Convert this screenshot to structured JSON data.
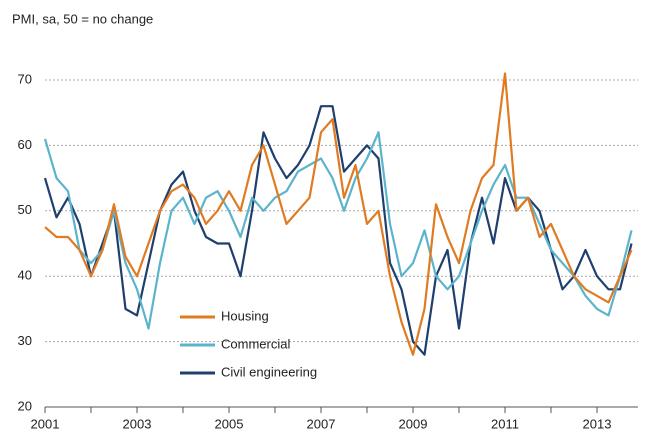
{
  "chart_data": {
    "type": "line",
    "subtitle": "PMI, sa, 50 = no change",
    "x": [
      2001,
      2001.25,
      2001.5,
      2001.75,
      2002,
      2002.25,
      2002.5,
      2002.75,
      2003,
      2003.25,
      2003.5,
      2003.75,
      2004,
      2004.25,
      2004.5,
      2004.75,
      2005,
      2005.25,
      2005.5,
      2005.75,
      2006,
      2006.25,
      2006.5,
      2006.75,
      2007,
      2007.25,
      2007.5,
      2007.75,
      2008,
      2008.25,
      2008.5,
      2008.75,
      2009,
      2009.25,
      2009.5,
      2009.75,
      2010,
      2010.25,
      2010.5,
      2010.75,
      2011,
      2011.25,
      2011.5,
      2011.75,
      2012,
      2012.25,
      2012.5,
      2012.75,
      2013,
      2013.25,
      2013.5,
      2013.75
    ],
    "series": [
      {
        "name": "Housing",
        "color": "#e07b22",
        "values": [
          47.5,
          46,
          46,
          44,
          40,
          44,
          51,
          43,
          40,
          45,
          50,
          53,
          54,
          52,
          48,
          50,
          53,
          50,
          57,
          60,
          54,
          48,
          50,
          52,
          62,
          64,
          52,
          57,
          48,
          50,
          40,
          33,
          28,
          35,
          51,
          46,
          42,
          50,
          55,
          57,
          71,
          50,
          52,
          46,
          48,
          44,
          40,
          38,
          37,
          36,
          40,
          44
        ]
      },
      {
        "name": "Commercial",
        "color": "#5bb4cc",
        "values": [
          61,
          55,
          53,
          44,
          42,
          44,
          50,
          42,
          38,
          32,
          42,
          50,
          52,
          48,
          52,
          53,
          50,
          46,
          52,
          50,
          52,
          53,
          56,
          57,
          58,
          55,
          50,
          55,
          58,
          62,
          48,
          40,
          42,
          47,
          40,
          38,
          40,
          45,
          50,
          54,
          57,
          52,
          52,
          48,
          44,
          42,
          40,
          37,
          35,
          34,
          40,
          47
        ]
      },
      {
        "name": "Civil engineering",
        "color": "#1f3f6e",
        "values": [
          55,
          49,
          52,
          48,
          40,
          45,
          50,
          35,
          34,
          42,
          50,
          54,
          56,
          50,
          46,
          45,
          45,
          40,
          50,
          62,
          58,
          55,
          57,
          60,
          66,
          66,
          56,
          58,
          60,
          58,
          42,
          38,
          30,
          28,
          40,
          44,
          32,
          45,
          52,
          45,
          55,
          50,
          52,
          50,
          44,
          38,
          40,
          44,
          40,
          38,
          38,
          45
        ]
      }
    ],
    "xlim": [
      2001,
      2014
    ],
    "xticks": [
      2001,
      2003,
      2005,
      2007,
      2009,
      2011,
      2013
    ],
    "xticks_minor": [
      2002,
      2004,
      2006,
      2008,
      2010,
      2012
    ],
    "ylim": [
      20,
      70
    ],
    "yticks": [
      20,
      30,
      40,
      50,
      60,
      70
    ],
    "grid": true
  }
}
